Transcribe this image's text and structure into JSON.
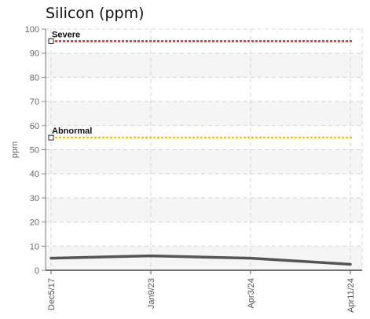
{
  "chart_data": {
    "type": "line",
    "title": "Silicon (ppm)",
    "ylabel": "ppm",
    "xlabel": "",
    "ylim": [
      0,
      100
    ],
    "yticks": [
      0,
      10,
      20,
      30,
      40,
      50,
      60,
      70,
      80,
      90,
      100
    ],
    "grid": true,
    "categories": [
      "Dec5/17",
      "Jan9/23",
      "Apr3/24",
      "Apr11/24"
    ],
    "series": [
      {
        "values": [
          5,
          6,
          5,
          2.5
        ],
        "color": "#555555"
      }
    ],
    "thresholds": [
      {
        "label": "Severe",
        "value": 95,
        "color": "#e8262a"
      },
      {
        "label": "Abnormal",
        "value": 55,
        "color": "#f3c21b"
      }
    ]
  }
}
